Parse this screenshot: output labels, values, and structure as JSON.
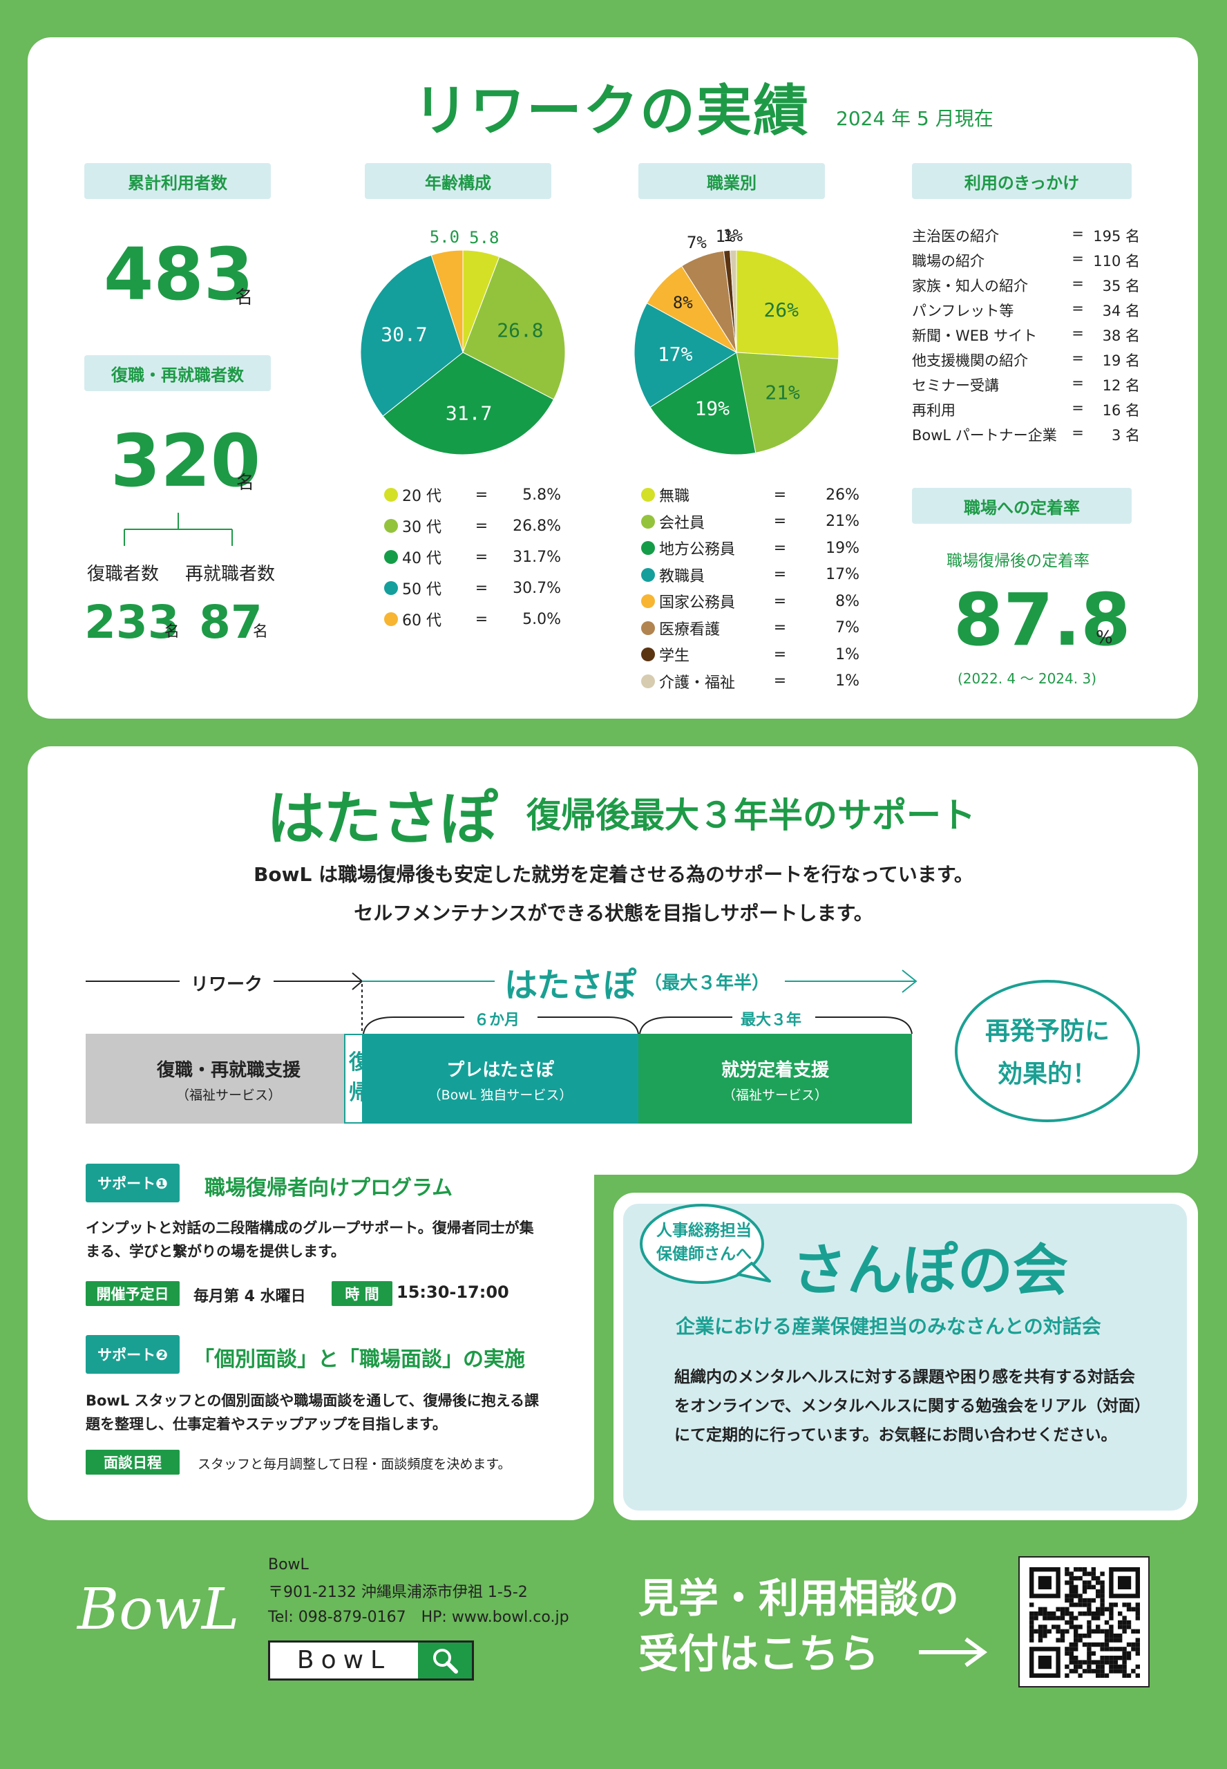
{
  "section1": {
    "title": "リワークの実績",
    "date": "2024 年 5 月現在",
    "cumulative": {
      "label": "累計利用者数",
      "value": "483",
      "unit": "名"
    },
    "return": {
      "label": "復職・再就職者数",
      "value": "320",
      "unit": "名",
      "sub1_label": "復職者数",
      "sub1_value": "233",
      "sub1_unit": "名",
      "sub2_label": "再就職者数",
      "sub2_value": "87",
      "sub2_unit": "名"
    },
    "reasons": {
      "label": "利用のきっかけ",
      "items": [
        {
          "name": "主治医の紹介",
          "eq": "=",
          "value": "195 名"
        },
        {
          "name": "職場の紹介",
          "eq": "=",
          "value": "110 名"
        },
        {
          "name": "家族・知人の紹介",
          "eq": "=",
          "value": "35 名"
        },
        {
          "name": "パンフレット等",
          "eq": "=",
          "value": "34 名"
        },
        {
          "name": "新聞・WEB サイト",
          "eq": "=",
          "value": "38 名"
        },
        {
          "name": "他支援機関の紹介",
          "eq": "=",
          "value": "19 名"
        },
        {
          "name": "セミナー受講",
          "eq": "=",
          "value": "12 名"
        },
        {
          "name": "再利用",
          "eq": "=",
          "value": "16 名"
        },
        {
          "name": "BowL パートナー企業",
          "eq": "=",
          "value": "3 名"
        }
      ]
    },
    "retention": {
      "label": "職場への定着率",
      "sub": "職場復帰後の定着率",
      "value": "87.8",
      "unit": "%",
      "period": "(2022. 4 ～ 2024. 3)"
    }
  },
  "chart_data": [
    {
      "type": "pie",
      "title": "年齢構成",
      "categories": [
        "20 代",
        "30 代",
        "40 代",
        "50 代",
        "60 代"
      ],
      "values": [
        5.8,
        26.8,
        31.7,
        30.7,
        5.0
      ],
      "labels": [
        "5.8%",
        "26.8%",
        "31.7%",
        "30.7%",
        "5.0%"
      ],
      "slice_labels": [
        "5.8",
        "26.8",
        "31.7",
        "30.7",
        "5.0"
      ],
      "colors": [
        "#d4e026",
        "#93c33c",
        "#159c48",
        "#149f9c",
        "#f7b531"
      ]
    },
    {
      "type": "pie",
      "title": "職業別",
      "categories": [
        "無職",
        "会社員",
        "地方公務員",
        "教職員",
        "国家公務員",
        "医療看護",
        "学生",
        "介護・福祉"
      ],
      "values": [
        26,
        21,
        19,
        17,
        8,
        7,
        1,
        1
      ],
      "labels": [
        "26%",
        "21%",
        "19%",
        "17%",
        "8%",
        "7%",
        "1%",
        "1%"
      ],
      "colors": [
        "#d4e026",
        "#93c33c",
        "#159c48",
        "#149f9c",
        "#f7b531",
        "#b18450",
        "#5b3412",
        "#d7ccb0"
      ]
    }
  ],
  "section2": {
    "title": "はたさぽ",
    "subtitle": "復帰後最大３年半のサポート",
    "lead1": "BowL は職場復帰後も安定した就労を定着させる為のサポートを行なっています。",
    "lead2": "セルフメンテナンスができる状態を目指しサポートします。",
    "timeline": {
      "rework": "リワーク",
      "hatasapo": "はたさぽ",
      "hatasapo_note": "（最大３年半）",
      "six_months": "６か月",
      "max3": "最大３年",
      "box1_title": "復職・再就職支援",
      "box1_sub": "（福祉サービス）",
      "box_mid": "復帰",
      "box2_title": "プレはたさぽ",
      "box2_sub": "（BowL 独自サービス）",
      "box3_title": "就労定着支援",
      "box3_sub": "（福祉サービス）",
      "effect": "再発予防に効果的！"
    },
    "support1": {
      "tag": "サポート❶",
      "title": "職場復帰者向けプログラム",
      "body": "インプットと対話の二段階構成のグループサポート。復帰者同士が集まる、学びと繋がりの場を提供します。",
      "tag_day": "開催予定日",
      "day": "毎月第 4 水曜日",
      "tag_time": "時 間",
      "time": "15:30-17:00"
    },
    "support2": {
      "tag": "サポート❷",
      "title": "「個別面談」と「職場面談」の実施",
      "body": "BowL スタッフとの個別面談や職場面談を通して、復帰後に抱える課題を整理し、仕事定着やステップアップを目指します。",
      "tag_sched": "面談日程",
      "sched": "スタッフと毎月調整して日程・面談頻度を決めます。"
    }
  },
  "sanpo": {
    "bubble": "人事総務担当保健師さんへ",
    "title": "さんぽの会",
    "subtitle": "企業における産業保健担当のみなさんとの対話会",
    "body": "組織内のメンタルヘルスに対する課題や困り感を共有する対話会をオンラインで、メンタルヘルスに関する勉強会をリアル（対面）にて定期的に行っています。お気軽にお問い合わせください。"
  },
  "footer": {
    "logo": "BowL",
    "company": "BowL",
    "address": "〒901-2132 沖縄県浦添市伊祖 1-5-2",
    "tel": "Tel: 098-879-0167　HP: www.bowl.co.jp",
    "search_box": "BowL",
    "cta1": "見学・利用相談の",
    "cta2": "受付はこちら",
    "colors": {
      "bg": "#6ab95a",
      "green": "#1e9a47",
      "teal": "#1aa093"
    },
    "icons": [
      "search-icon",
      "arrow-right-icon",
      "qr-code-icon"
    ]
  }
}
